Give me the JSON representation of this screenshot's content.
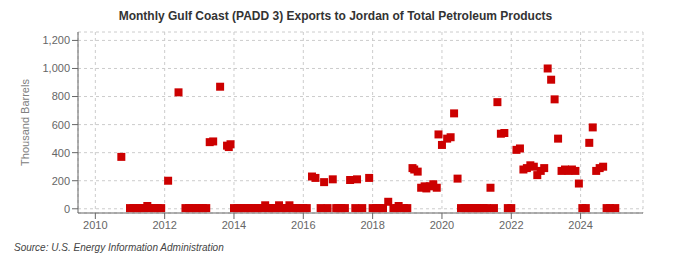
{
  "chart_data": {
    "type": "scatter",
    "title": "Monthly Gulf Coast (PADD 3) Exports to Jordan of Total Petroleum Products",
    "ylabel": "Thousand Barrels",
    "annotations": [
      "Source: U.S. Energy Information Administration"
    ],
    "color": "#cc0000",
    "marker": "square",
    "grid": true,
    "xlim": [
      2009.5,
      2025.8
    ],
    "xticks": [
      2010,
      2012,
      2014,
      2016,
      2018,
      2020,
      2022,
      2024
    ],
    "ylim": [
      -30,
      1260
    ],
    "yticks": [
      0,
      200,
      400,
      600,
      800,
      {
        "value": 1000,
        "label": "1,000"
      },
      {
        "value": 1200,
        "label": "1,200"
      }
    ],
    "x": [
      2010.75,
      2011.0,
      2011.1,
      2011.2,
      2011.3,
      2011.4,
      2011.5,
      2011.6,
      2011.7,
      2011.8,
      2011.9,
      2012.1,
      2012.4,
      2012.6,
      2012.7,
      2012.8,
      2012.9,
      2013.0,
      2013.1,
      2013.2,
      2013.3,
      2013.4,
      2013.6,
      2013.8,
      2013.85,
      2013.9,
      2014.0,
      2014.1,
      2014.2,
      2014.3,
      2014.4,
      2014.5,
      2014.6,
      2014.7,
      2014.8,
      2014.9,
      2015.0,
      2015.1,
      2015.2,
      2015.3,
      2015.4,
      2015.5,
      2015.6,
      2015.7,
      2015.8,
      2015.9,
      2016.0,
      2016.1,
      2016.25,
      2016.35,
      2016.5,
      2016.6,
      2016.7,
      2016.85,
      2016.95,
      2017.0,
      2017.1,
      2017.2,
      2017.35,
      2017.5,
      2017.55,
      2017.7,
      2017.9,
      2018.0,
      2018.1,
      2018.2,
      2018.3,
      2018.45,
      2018.6,
      2018.7,
      2018.75,
      2018.9,
      2019.0,
      2019.15,
      2019.2,
      2019.3,
      2019.4,
      2019.5,
      2019.55,
      2019.65,
      2019.75,
      2019.85,
      2019.9,
      2020.0,
      2020.15,
      2020.25,
      2020.35,
      2020.45,
      2020.55,
      2020.65,
      2020.75,
      2020.85,
      2020.95,
      2021.0,
      2021.1,
      2021.2,
      2021.3,
      2021.4,
      2021.5,
      2021.6,
      2021.7,
      2021.8,
      2021.9,
      2022.0,
      2022.15,
      2022.25,
      2022.35,
      2022.45,
      2022.55,
      2022.65,
      2022.75,
      2022.85,
      2022.95,
      2023.05,
      2023.15,
      2023.25,
      2023.35,
      2023.45,
      2023.55,
      2023.65,
      2023.75,
      2023.85,
      2023.95,
      2024.05,
      2024.15,
      2024.25,
      2024.35,
      2024.45,
      2024.55,
      2024.65,
      2024.75,
      2024.85,
      2025.0
    ],
    "values": [
      370,
      5,
      5,
      5,
      5,
      5,
      20,
      5,
      5,
      5,
      5,
      200,
      830,
      5,
      5,
      5,
      5,
      5,
      5,
      5,
      475,
      480,
      870,
      450,
      440,
      460,
      5,
      5,
      5,
      5,
      5,
      5,
      5,
      5,
      5,
      25,
      5,
      5,
      5,
      25,
      5,
      5,
      25,
      5,
      5,
      5,
      5,
      5,
      230,
      220,
      5,
      190,
      5,
      210,
      5,
      5,
      5,
      5,
      205,
      5,
      210,
      5,
      220,
      5,
      5,
      5,
      5,
      50,
      5,
      5,
      20,
      5,
      5,
      290,
      280,
      265,
      150,
      160,
      145,
      160,
      175,
      150,
      530,
      455,
      500,
      510,
      680,
      215,
      5,
      5,
      5,
      5,
      5,
      5,
      5,
      5,
      5,
      150,
      5,
      760,
      535,
      540,
      5,
      5,
      420,
      430,
      280,
      290,
      310,
      300,
      240,
      270,
      290,
      1000,
      920,
      780,
      500,
      270,
      280,
      270,
      280,
      270,
      180,
      5,
      5,
      470,
      580,
      270,
      290,
      300,
      5,
      5,
      5
    ]
  }
}
